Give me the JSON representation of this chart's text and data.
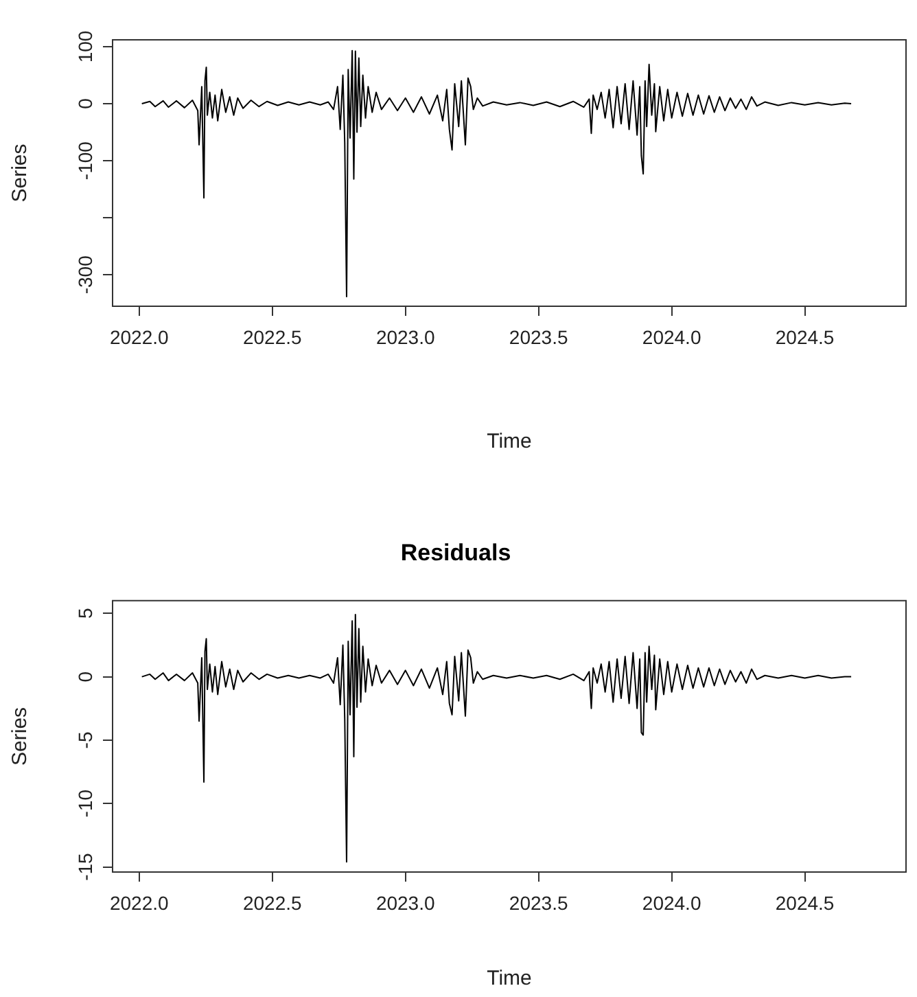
{
  "chart_data": [
    {
      "type": "line",
      "xlabel": "Time",
      "ylabel": "Series",
      "marker": "none",
      "xlim": [
        2021.9,
        2024.88
      ],
      "ylim": [
        -355,
        112
      ],
      "xticks": [
        {
          "value": 2022,
          "label": "2022.0"
        },
        {
          "value": 2022.5,
          "label": "2022.5"
        },
        {
          "value": 2023,
          "label": "2023.0"
        },
        {
          "value": 2023.5,
          "label": "2023.5"
        },
        {
          "value": 2024,
          "label": "2024.0"
        },
        {
          "value": 2024.5,
          "label": "2024.5"
        }
      ],
      "yticks": [
        100,
        0,
        -100,
        {
          "value": -200,
          "label": null
        },
        -300
      ],
      "series": [
        {
          "color": "#000000",
          "x": [
            2022.01,
            2022.04,
            2022.06,
            2022.09,
            2022.11,
            2022.14,
            2022.17,
            2022.2,
            2022.22,
            2022.225,
            2022.235,
            2022.243,
            2022.247,
            2022.252,
            2022.256,
            2022.265,
            2022.275,
            2022.285,
            2022.295,
            2022.31,
            2022.325,
            2022.34,
            2022.355,
            2022.37,
            2022.39,
            2022.42,
            2022.45,
            2022.48,
            2022.52,
            2022.56,
            2022.6,
            2022.64,
            2022.68,
            2022.71,
            2022.73,
            2022.745,
            2022.755,
            2022.765,
            2022.772,
            2022.779,
            2022.785,
            2022.792,
            2022.8,
            2022.806,
            2022.812,
            2022.818,
            2022.825,
            2022.832,
            2022.84,
            2022.85,
            2022.86,
            2022.875,
            2022.89,
            2022.91,
            2022.94,
            2022.97,
            2023,
            2023.03,
            2023.06,
            2023.09,
            2023.12,
            2023.14,
            2023.155,
            2023.165,
            2023.175,
            2023.185,
            2023.2,
            2023.21,
            2023.225,
            2023.235,
            2023.245,
            2023.255,
            2023.27,
            2023.29,
            2023.33,
            2023.38,
            2023.43,
            2023.48,
            2023.53,
            2023.58,
            2023.63,
            2023.67,
            2023.69,
            2023.698,
            2023.705,
            2023.72,
            2023.735,
            2023.75,
            2023.765,
            2023.78,
            2023.795,
            2023.81,
            2023.825,
            2023.84,
            2023.855,
            2023.87,
            2023.88,
            2023.886,
            2023.893,
            2023.9,
            2023.906,
            2023.915,
            2023.925,
            2023.935,
            2023.94,
            2023.955,
            2023.97,
            2023.985,
            2024,
            2024.02,
            2024.04,
            2024.06,
            2024.08,
            2024.1,
            2024.12,
            2024.14,
            2024.16,
            2024.18,
            2024.2,
            2024.22,
            2024.24,
            2024.26,
            2024.28,
            2024.3,
            2024.32,
            2024.35,
            2024.4,
            2024.45,
            2024.5,
            2024.55,
            2024.6,
            2024.65,
            2024.674
          ],
          "values": [
            0,
            4,
            -5,
            5,
            -6,
            5,
            -7,
            6,
            -12,
            -72,
            30,
            -165,
            40,
            64,
            -20,
            20,
            -25,
            15,
            -30,
            25,
            -15,
            12,
            -20,
            10,
            -8,
            6,
            -5,
            4,
            -3,
            3,
            -2,
            3,
            -2,
            3,
            -10,
            30,
            -45,
            50,
            -68,
            -338,
            60,
            -60,
            93,
            -132,
            92,
            -50,
            80,
            -40,
            50,
            -25,
            30,
            -15,
            20,
            -10,
            10,
            -12,
            10,
            -15,
            12,
            -18,
            15,
            -30,
            25,
            -45,
            -81,
            35,
            -40,
            40,
            -72,
            45,
            30,
            -10,
            10,
            -4,
            3,
            -2,
            2,
            -3,
            3,
            -5,
            4,
            -6,
            8,
            -52,
            15,
            -10,
            20,
            -25,
            25,
            -42,
            30,
            -35,
            35,
            -45,
            40,
            -55,
            30,
            -91,
            -123,
            40,
            -40,
            69,
            -20,
            35,
            -49,
            30,
            -30,
            25,
            -25,
            20,
            -22,
            18,
            -20,
            15,
            -18,
            14,
            -15,
            12,
            -12,
            10,
            -8,
            8,
            -10,
            12,
            -4,
            3,
            -3,
            2,
            -2,
            2,
            -2,
            1,
            0
          ]
        }
      ]
    },
    {
      "type": "line",
      "title": "Residuals",
      "xlabel": "Time",
      "ylabel": "Series",
      "marker": "none",
      "xlim": [
        2021.9,
        2024.88
      ],
      "ylim": [
        -15.4,
        6
      ],
      "xticks": [
        {
          "value": 2022,
          "label": "2022.0"
        },
        {
          "value": 2022.5,
          "label": "2022.5"
        },
        {
          "value": 2023,
          "label": "2023.0"
        },
        {
          "value": 2023.5,
          "label": "2023.5"
        },
        {
          "value": 2024,
          "label": "2024.0"
        },
        {
          "value": 2024.5,
          "label": "2024.5"
        }
      ],
      "yticks": [
        5,
        0,
        -5,
        -10,
        -15
      ],
      "series": [
        {
          "color": "#000000",
          "x": [
            2022.01,
            2022.04,
            2022.06,
            2022.09,
            2022.11,
            2022.14,
            2022.17,
            2022.2,
            2022.22,
            2022.225,
            2022.235,
            2022.243,
            2022.247,
            2022.252,
            2022.256,
            2022.265,
            2022.275,
            2022.285,
            2022.295,
            2022.31,
            2022.325,
            2022.34,
            2022.355,
            2022.37,
            2022.39,
            2022.42,
            2022.45,
            2022.48,
            2022.52,
            2022.56,
            2022.6,
            2022.64,
            2022.68,
            2022.71,
            2022.73,
            2022.745,
            2022.755,
            2022.765,
            2022.772,
            2022.779,
            2022.785,
            2022.792,
            2022.8,
            2022.806,
            2022.812,
            2022.818,
            2022.825,
            2022.832,
            2022.84,
            2022.85,
            2022.86,
            2022.875,
            2022.89,
            2022.91,
            2022.94,
            2022.97,
            2023,
            2023.03,
            2023.06,
            2023.09,
            2023.12,
            2023.14,
            2023.155,
            2023.165,
            2023.175,
            2023.185,
            2023.2,
            2023.21,
            2023.225,
            2023.235,
            2023.245,
            2023.255,
            2023.27,
            2023.29,
            2023.33,
            2023.38,
            2023.43,
            2023.48,
            2023.53,
            2023.58,
            2023.63,
            2023.67,
            2023.69,
            2023.698,
            2023.705,
            2023.72,
            2023.735,
            2023.75,
            2023.765,
            2023.78,
            2023.795,
            2023.81,
            2023.825,
            2023.84,
            2023.855,
            2023.87,
            2023.88,
            2023.886,
            2023.893,
            2023.9,
            2023.906,
            2023.915,
            2023.925,
            2023.935,
            2023.94,
            2023.955,
            2023.97,
            2023.985,
            2024,
            2024.02,
            2024.04,
            2024.06,
            2024.08,
            2024.1,
            2024.12,
            2024.14,
            2024.16,
            2024.18,
            2024.2,
            2024.22,
            2024.24,
            2024.26,
            2024.28,
            2024.3,
            2024.32,
            2024.35,
            2024.4,
            2024.45,
            2024.5,
            2024.55,
            2024.6,
            2024.65,
            2024.674
          ],
          "values": [
            0,
            0.2,
            -0.2,
            0.3,
            -0.3,
            0.2,
            -0.3,
            0.3,
            -0.5,
            -3.5,
            1.5,
            -8.3,
            2,
            3,
            -1,
            1,
            -1.2,
            0.8,
            -1.4,
            1.2,
            -0.8,
            0.6,
            -1,
            0.5,
            -0.4,
            0.3,
            -0.2,
            0.2,
            -0.1,
            0.1,
            -0.1,
            0.1,
            -0.1,
            0.2,
            -0.5,
            1.5,
            -2.2,
            2.5,
            -3.3,
            -14.6,
            2.8,
            -3,
            4.4,
            -6.3,
            4.9,
            -2.4,
            3.8,
            -2,
            2.4,
            -1.2,
            1.4,
            -0.7,
            0.9,
            -0.5,
            0.5,
            -0.6,
            0.5,
            -0.7,
            0.6,
            -0.9,
            0.7,
            -1.4,
            1.2,
            -2.1,
            -3,
            1.6,
            -1.9,
            1.9,
            -3.1,
            2.1,
            1.5,
            -0.5,
            0.4,
            -0.2,
            0.1,
            -0.1,
            0.1,
            -0.1,
            0.1,
            -0.2,
            0.2,
            -0.3,
            0.4,
            -2.5,
            0.7,
            -0.5,
            1,
            -1.2,
            1.2,
            -2,
            1.4,
            -1.7,
            1.6,
            -2.1,
            1.9,
            -2.5,
            1.4,
            -4.4,
            -4.6,
            1.9,
            -2,
            2.4,
            -1,
            1.7,
            -2.6,
            1.4,
            -1.4,
            1.2,
            -1.2,
            1,
            -1,
            0.9,
            -0.9,
            0.7,
            -0.8,
            0.7,
            -0.7,
            0.6,
            -0.6,
            0.5,
            -0.4,
            0.4,
            -0.5,
            0.6,
            -0.2,
            0.1,
            -0.1,
            0.1,
            -0.1,
            0.1,
            -0.1,
            0,
            0
          ]
        }
      ]
    }
  ]
}
